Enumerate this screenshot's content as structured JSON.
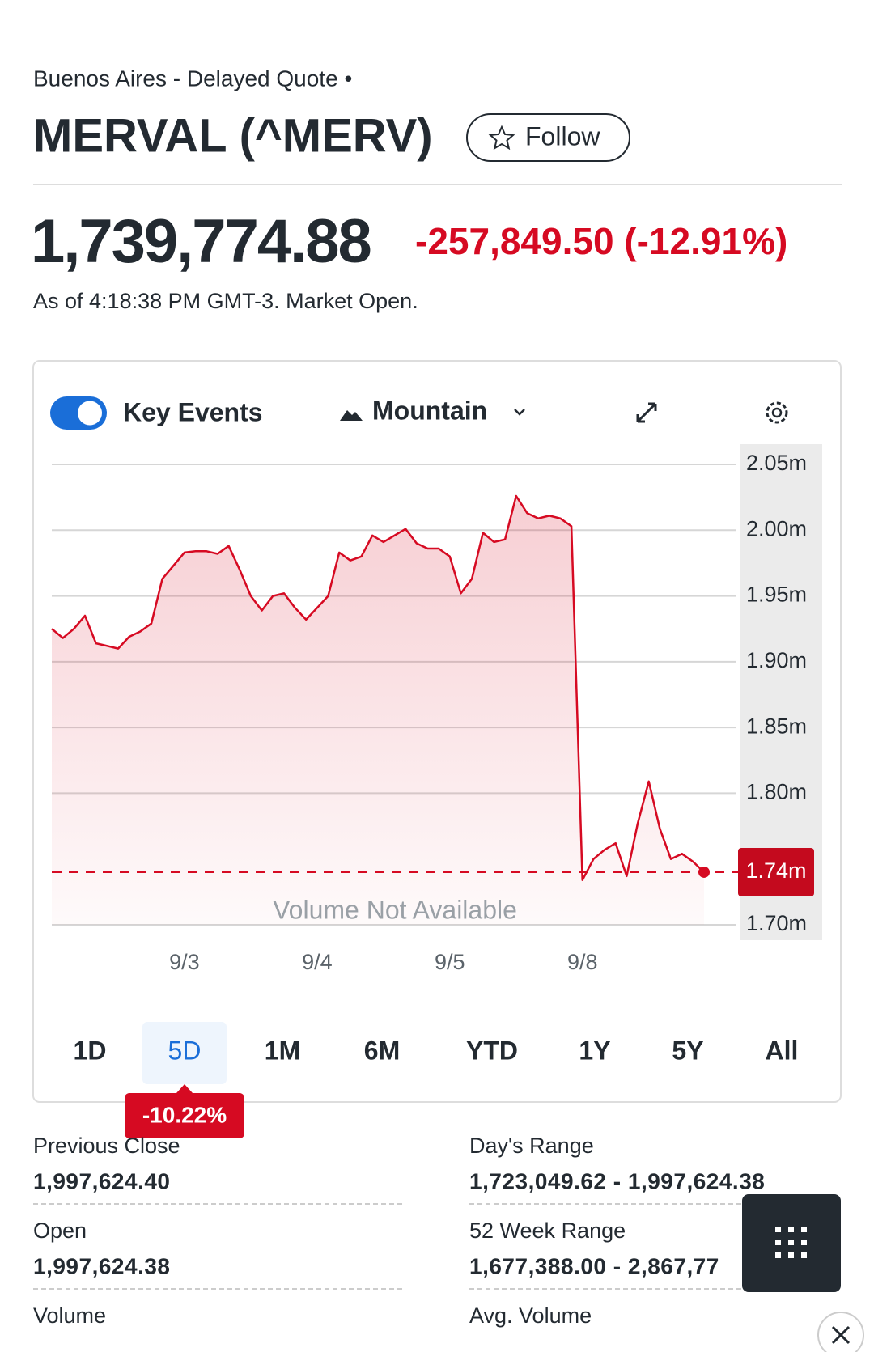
{
  "header": {
    "exchange": "Buenos Aires - Delayed Quote •",
    "title": "MERVAL (^MERV)",
    "follow": "Follow"
  },
  "quote": {
    "price": "1,739,774.88",
    "change": "-257,849.50 (-12.91%)",
    "as_of": "As of 4:18:38 PM GMT-3. Market Open."
  },
  "toolbar": {
    "key_events": "Key Events",
    "chart_style": "Mountain"
  },
  "chart_data": {
    "type": "area",
    "color": "#d60a22",
    "values": [
      1925000,
      1918000,
      1925000,
      1935000,
      1914000,
      1912000,
      1910000,
      1919000,
      1923000,
      1929000,
      1963000,
      1973000,
      1983000,
      1984000,
      1984000,
      1982000,
      1988000,
      1970000,
      1950000,
      1939000,
      1950000,
      1952000,
      1941000,
      1932000,
      1941000,
      1950000,
      1983000,
      1977000,
      1980000,
      1996000,
      1991000,
      1996000,
      2001000,
      1990000,
      1986000,
      1986000,
      1980000,
      1952000,
      1963000,
      1998000,
      1991000,
      1993000,
      2026000,
      2013000,
      2009000,
      2011000,
      2009000,
      2003000,
      1734000,
      1750000,
      1757000,
      1762000,
      1737000,
      1777000,
      1809000,
      1773000,
      1750000,
      1754000,
      1748000,
      1740000
    ],
    "xlim": [
      0,
      62
    ],
    "xticks": [
      {
        "value": 12,
        "label": "9/3"
      },
      {
        "value": 24,
        "label": "9/4"
      },
      {
        "value": 36,
        "label": "9/5"
      },
      {
        "value": 48,
        "label": "9/8"
      }
    ],
    "ylim": [
      1700000,
      2050000
    ],
    "yticks": [
      {
        "value": 1700000,
        "label": "1.70m"
      },
      {
        "value": 1800000,
        "label": "1.80m"
      },
      {
        "value": 1850000,
        "label": "1.85m"
      },
      {
        "value": 1900000,
        "label": "1.90m"
      },
      {
        "value": 1950000,
        "label": "1.95m"
      },
      {
        "value": 2000000,
        "label": "2.00m"
      },
      {
        "value": 2050000,
        "label": "2.05m"
      }
    ],
    "grid": true,
    "current": {
      "value": 1740000,
      "label": "1.74m"
    },
    "annotation": "Volume Not Available"
  },
  "ranges": {
    "buttons": [
      "1D",
      "5D",
      "1M",
      "6M",
      "YTD",
      "1Y",
      "5Y",
      "All"
    ],
    "selected": 1,
    "selected_change": "-10.22%"
  },
  "stats": {
    "left": [
      {
        "label": "Previous Close",
        "value": "1,997,624.40"
      },
      {
        "label": "Open",
        "value": "1,997,624.38"
      },
      {
        "label": "Volume"
      }
    ],
    "right": [
      {
        "label": "Day's Range",
        "value": "1,723,049.62 - 1,997,624.38"
      },
      {
        "label": "52 Week Range",
        "value": "1,677,388.00 - 2,867,77"
      },
      {
        "label": "Avg. Volume"
      }
    ]
  }
}
